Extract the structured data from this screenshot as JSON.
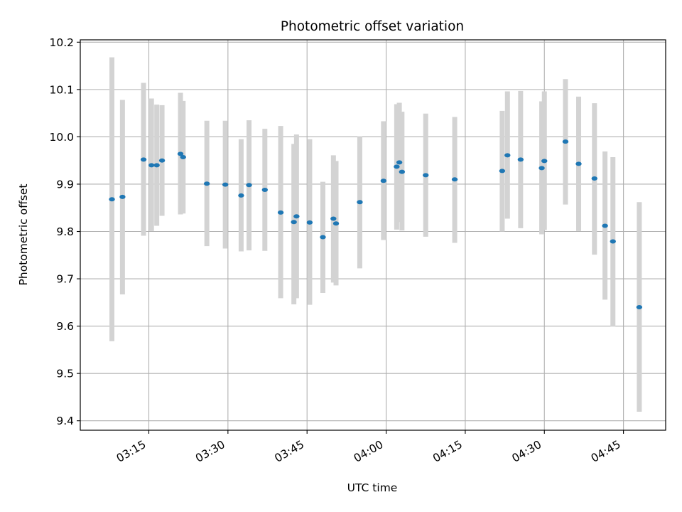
{
  "chart_data": {
    "type": "scatter",
    "title": "Photometric offset variation",
    "xlabel": "UTC time",
    "ylabel": "Photometric offset",
    "x_unit": "UTC time (HH:MM:SS)",
    "xlim": [
      "03:02:00",
      "04:53:00"
    ],
    "ylim": [
      9.38,
      10.205
    ],
    "xticks": [
      "03:15",
      "03:30",
      "03:45",
      "04:00",
      "04:15",
      "04:30",
      "04:45"
    ],
    "yticks": [
      "9.4",
      "9.5",
      "9.6",
      "9.7",
      "9.8",
      "9.9",
      "10.0",
      "10.1",
      "10.2"
    ],
    "grid": true,
    "marker_color": "#1f77b4",
    "errorbar_color": "#d3d3d3",
    "points": [
      {
        "x": "03:08:00",
        "y": 9.868,
        "ylow": 9.568,
        "yhigh": 10.168
      },
      {
        "x": "03:10:00",
        "y": 9.873,
        "ylow": 9.667,
        "yhigh": 10.078
      },
      {
        "x": "03:14:00",
        "y": 9.952,
        "ylow": 9.791,
        "yhigh": 10.114
      },
      {
        "x": "03:15:30",
        "y": 9.94,
        "ylow": 9.801,
        "yhigh": 10.081
      },
      {
        "x": "03:16:30",
        "y": 9.94,
        "ylow": 9.812,
        "yhigh": 10.068
      },
      {
        "x": "03:17:30",
        "y": 9.95,
        "ylow": 9.833,
        "yhigh": 10.067
      },
      {
        "x": "03:21:00",
        "y": 9.964,
        "ylow": 9.836,
        "yhigh": 10.093
      },
      {
        "x": "03:21:30",
        "y": 9.957,
        "ylow": 9.838,
        "yhigh": 10.076
      },
      {
        "x": "03:26:00",
        "y": 9.901,
        "ylow": 9.769,
        "yhigh": 10.034
      },
      {
        "x": "03:29:30",
        "y": 9.899,
        "ylow": 9.764,
        "yhigh": 10.034
      },
      {
        "x": "03:32:30",
        "y": 9.876,
        "ylow": 9.758,
        "yhigh": 9.995
      },
      {
        "x": "03:34:00",
        "y": 9.898,
        "ylow": 9.76,
        "yhigh": 10.035
      },
      {
        "x": "03:37:00",
        "y": 9.888,
        "ylow": 9.759,
        "yhigh": 10.017
      },
      {
        "x": "03:40:00",
        "y": 9.84,
        "ylow": 9.659,
        "yhigh": 10.023
      },
      {
        "x": "03:42:30",
        "y": 9.82,
        "ylow": 9.646,
        "yhigh": 9.985
      },
      {
        "x": "03:43:00",
        "y": 9.832,
        "ylow": 9.659,
        "yhigh": 10.005
      },
      {
        "x": "03:45:30",
        "y": 9.819,
        "ylow": 9.645,
        "yhigh": 9.995
      },
      {
        "x": "03:48:00",
        "y": 9.788,
        "ylow": 9.67,
        "yhigh": 9.905
      },
      {
        "x": "03:50:00",
        "y": 9.827,
        "ylow": 9.692,
        "yhigh": 9.961
      },
      {
        "x": "03:50:30",
        "y": 9.817,
        "ylow": 9.686,
        "yhigh": 9.949
      },
      {
        "x": "03:55:00",
        "y": 9.862,
        "ylow": 9.722,
        "yhigh": 10.0
      },
      {
        "x": "03:59:30",
        "y": 9.907,
        "ylow": 9.782,
        "yhigh": 10.033
      },
      {
        "x": "04:02:00",
        "y": 9.937,
        "ylow": 9.804,
        "yhigh": 10.069
      },
      {
        "x": "04:02:30",
        "y": 9.946,
        "ylow": 9.82,
        "yhigh": 10.072
      },
      {
        "x": "04:03:00",
        "y": 9.926,
        "ylow": 9.802,
        "yhigh": 10.053
      },
      {
        "x": "04:07:30",
        "y": 9.919,
        "ylow": 9.789,
        "yhigh": 10.049
      },
      {
        "x": "04:13:00",
        "y": 9.91,
        "ylow": 9.776,
        "yhigh": 10.042
      },
      {
        "x": "04:22:00",
        "y": 9.928,
        "ylow": 9.8,
        "yhigh": 10.055
      },
      {
        "x": "04:23:00",
        "y": 9.961,
        "ylow": 9.827,
        "yhigh": 10.096
      },
      {
        "x": "04:25:30",
        "y": 9.952,
        "ylow": 9.807,
        "yhigh": 10.097
      },
      {
        "x": "04:29:30",
        "y": 9.934,
        "ylow": 9.794,
        "yhigh": 10.075
      },
      {
        "x": "04:30:00",
        "y": 9.949,
        "ylow": 9.803,
        "yhigh": 10.096
      },
      {
        "x": "04:34:00",
        "y": 9.99,
        "ylow": 9.857,
        "yhigh": 10.122
      },
      {
        "x": "04:36:30",
        "y": 9.943,
        "ylow": 9.801,
        "yhigh": 10.085
      },
      {
        "x": "04:39:30",
        "y": 9.912,
        "ylow": 9.751,
        "yhigh": 10.071
      },
      {
        "x": "04:41:30",
        "y": 9.812,
        "ylow": 9.656,
        "yhigh": 9.969
      },
      {
        "x": "04:43:00",
        "y": 9.779,
        "ylow": 9.599,
        "yhigh": 9.957
      },
      {
        "x": "04:48:00",
        "y": 9.64,
        "ylow": 9.419,
        "yhigh": 9.862
      }
    ]
  }
}
